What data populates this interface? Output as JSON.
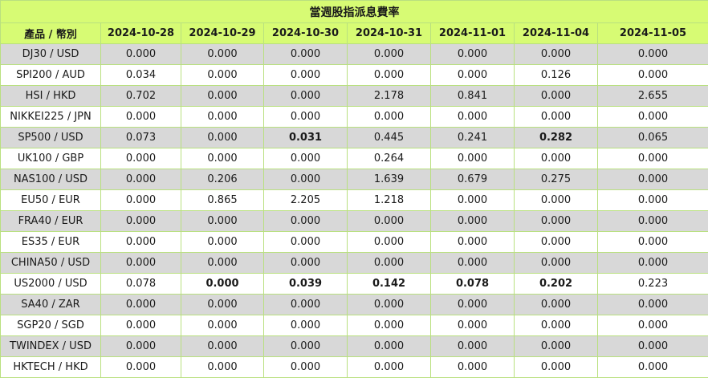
{
  "title": "當週股指派息費率",
  "product_header": "產品 / 幣別",
  "dates": [
    "2024-10-28",
    "2024-10-29",
    "2024-10-30",
    "2024-10-31",
    "2024-11-01",
    "2024-11-04",
    "2024-11-05"
  ],
  "rows": [
    {
      "product": "DJ30 / USD",
      "values": [
        "0.000",
        "0.000",
        "0.000",
        "0.000",
        "0.000",
        "0.000",
        "0.000"
      ],
      "bold": []
    },
    {
      "product": "SPI200 / AUD",
      "values": [
        "0.034",
        "0.000",
        "0.000",
        "0.000",
        "0.000",
        "0.126",
        "0.000"
      ],
      "bold": []
    },
    {
      "product": "HSI / HKD",
      "values": [
        "0.702",
        "0.000",
        "0.000",
        "2.178",
        "0.841",
        "0.000",
        "2.655"
      ],
      "bold": []
    },
    {
      "product": "NIKKEI225 / JPN",
      "values": [
        "0.000",
        "0.000",
        "0.000",
        "0.000",
        "0.000",
        "0.000",
        "0.000"
      ],
      "bold": []
    },
    {
      "product": "SP500 / USD",
      "values": [
        "0.073",
        "0.000",
        "0.031",
        "0.445",
        "0.241",
        "0.282",
        "0.065"
      ],
      "bold": [
        2,
        5
      ]
    },
    {
      "product": "UK100 / GBP",
      "values": [
        "0.000",
        "0.000",
        "0.000",
        "0.264",
        "0.000",
        "0.000",
        "0.000"
      ],
      "bold": []
    },
    {
      "product": "NAS100 / USD",
      "values": [
        "0.000",
        "0.206",
        "0.000",
        "1.639",
        "0.679",
        "0.275",
        "0.000"
      ],
      "bold": []
    },
    {
      "product": "EU50 / EUR",
      "values": [
        "0.000",
        "0.865",
        "2.205",
        "1.218",
        "0.000",
        "0.000",
        "0.000"
      ],
      "bold": []
    },
    {
      "product": "FRA40 / EUR",
      "values": [
        "0.000",
        "0.000",
        "0.000",
        "0.000",
        "0.000",
        "0.000",
        "0.000"
      ],
      "bold": []
    },
    {
      "product": "ES35 / EUR",
      "values": [
        "0.000",
        "0.000",
        "0.000",
        "0.000",
        "0.000",
        "0.000",
        "0.000"
      ],
      "bold": []
    },
    {
      "product": "CHINA50 / USD",
      "values": [
        "0.000",
        "0.000",
        "0.000",
        "0.000",
        "0.000",
        "0.000",
        "0.000"
      ],
      "bold": []
    },
    {
      "product": "US2000 / USD",
      "values": [
        "0.078",
        "0.000",
        "0.039",
        "0.142",
        "0.078",
        "0.202",
        "0.223"
      ],
      "bold": [
        1,
        2,
        3,
        4,
        5
      ]
    },
    {
      "product": "SA40 / ZAR",
      "values": [
        "0.000",
        "0.000",
        "0.000",
        "0.000",
        "0.000",
        "0.000",
        "0.000"
      ],
      "bold": []
    },
    {
      "product": "SGP20 / SGD",
      "values": [
        "0.000",
        "0.000",
        "0.000",
        "0.000",
        "0.000",
        "0.000",
        "0.000"
      ],
      "bold": []
    },
    {
      "product": "TWINDEX / USD",
      "values": [
        "0.000",
        "0.000",
        "0.000",
        "0.000",
        "0.000",
        "0.000",
        "0.000"
      ],
      "bold": []
    },
    {
      "product": "HKTECH / HKD",
      "values": [
        "0.000",
        "0.000",
        "0.000",
        "0.000",
        "0.000",
        "0.000",
        "0.000"
      ],
      "bold": []
    }
  ],
  "colors": {
    "header_bg": "#d7fb74",
    "row_gray": "#d8d8d8",
    "row_white": "#ffffff",
    "border": "#b9e07f"
  }
}
